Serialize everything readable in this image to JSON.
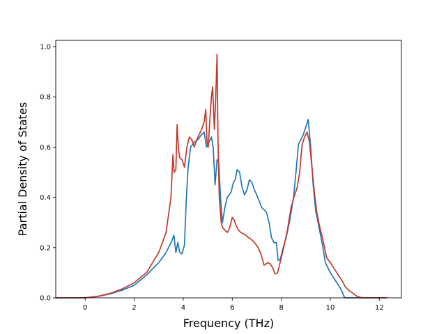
{
  "chart_data": {
    "type": "line",
    "title": "",
    "xlabel": "Frequency (THz)",
    "ylabel": "Partial Density of States",
    "xlim": [
      -1.2,
      12.9
    ],
    "ylim": [
      0.0,
      1.025
    ],
    "xticks": [
      0,
      2,
      4,
      6,
      8,
      10,
      12
    ],
    "yticks": [
      0.0,
      0.2,
      0.4,
      0.6,
      0.8,
      1.0
    ],
    "xtick_labels": [
      "0",
      "2",
      "4",
      "6",
      "8",
      "10",
      "12"
    ],
    "ytick_labels": [
      "0.0",
      "0.2",
      "0.4",
      "0.6",
      "0.8",
      "1.0"
    ],
    "grid": false,
    "legend": "none",
    "series": [
      {
        "color": "#1f77b4",
        "x": [
          -1.2,
          -0.5,
          0.0,
          0.5,
          1.0,
          1.5,
          2.0,
          2.5,
          3.0,
          3.3,
          3.55,
          3.62,
          3.7,
          3.78,
          3.86,
          3.95,
          4.05,
          4.12,
          4.2,
          4.3,
          4.45,
          4.6,
          4.75,
          4.85,
          4.95,
          5.05,
          5.15,
          5.22,
          5.3,
          5.38,
          5.45,
          5.52,
          5.6,
          5.7,
          5.8,
          5.95,
          6.05,
          6.12,
          6.2,
          6.3,
          6.4,
          6.5,
          6.6,
          6.7,
          6.8,
          6.9,
          7.0,
          7.2,
          7.4,
          7.5,
          7.6,
          7.7,
          7.8,
          7.87,
          7.95,
          8.05,
          8.2,
          8.35,
          8.5,
          8.6,
          8.7,
          8.8,
          8.9,
          9.0,
          9.1,
          9.2,
          9.3,
          9.4,
          9.5,
          9.6,
          9.7,
          9.8,
          9.9,
          10.0,
          10.2,
          10.4,
          10.5,
          10.56,
          10.6,
          12.3
        ],
        "y": [
          0.0,
          0.0,
          0.0,
          0.005,
          0.015,
          0.03,
          0.05,
          0.09,
          0.14,
          0.18,
          0.23,
          0.25,
          0.18,
          0.22,
          0.18,
          0.175,
          0.21,
          0.38,
          0.52,
          0.6,
          0.62,
          0.63,
          0.65,
          0.66,
          0.6,
          0.62,
          0.64,
          0.6,
          0.45,
          0.55,
          0.54,
          0.4,
          0.3,
          0.36,
          0.4,
          0.42,
          0.46,
          0.47,
          0.51,
          0.5,
          0.44,
          0.41,
          0.43,
          0.47,
          0.46,
          0.43,
          0.41,
          0.36,
          0.34,
          0.3,
          0.24,
          0.22,
          0.22,
          0.15,
          0.15,
          0.19,
          0.24,
          0.31,
          0.4,
          0.5,
          0.61,
          0.63,
          0.65,
          0.68,
          0.71,
          0.6,
          0.45,
          0.35,
          0.3,
          0.25,
          0.2,
          0.14,
          0.12,
          0.1,
          0.07,
          0.04,
          0.02,
          0.005,
          0.0,
          0.0
        ]
      },
      {
        "color": "#c0392b",
        "x": [
          -1.2,
          -0.5,
          0.0,
          0.5,
          1.0,
          1.5,
          2.0,
          2.5,
          3.0,
          3.3,
          3.5,
          3.58,
          3.63,
          3.7,
          3.75,
          3.8,
          3.85,
          3.95,
          4.05,
          4.15,
          4.25,
          4.35,
          4.45,
          4.55,
          4.65,
          4.75,
          4.85,
          4.92,
          4.97,
          5.02,
          5.08,
          5.15,
          5.2,
          5.27,
          5.32,
          5.38,
          5.42,
          5.47,
          5.55,
          5.6,
          5.7,
          5.8,
          5.9,
          6.0,
          6.08,
          6.15,
          6.25,
          6.35,
          6.45,
          6.55,
          6.65,
          6.75,
          6.85,
          6.95,
          7.05,
          7.15,
          7.3,
          7.45,
          7.55,
          7.65,
          7.75,
          7.85,
          7.95,
          8.1,
          8.25,
          8.4,
          8.55,
          8.65,
          8.75,
          8.85,
          8.95,
          9.05,
          9.15,
          9.25,
          9.35,
          9.45,
          9.55,
          9.7,
          9.85,
          10.0,
          10.2,
          10.4,
          10.5,
          10.6,
          10.75,
          10.9,
          11.1,
          11.3,
          12.3
        ],
        "y": [
          0.0,
          0.0,
          0.0,
          0.006,
          0.017,
          0.035,
          0.06,
          0.1,
          0.18,
          0.26,
          0.4,
          0.57,
          0.5,
          0.51,
          0.69,
          0.6,
          0.56,
          0.55,
          0.52,
          0.6,
          0.64,
          0.63,
          0.6,
          0.63,
          0.65,
          0.67,
          0.7,
          0.75,
          0.62,
          0.6,
          0.7,
          0.8,
          0.84,
          0.67,
          0.78,
          0.97,
          0.62,
          0.4,
          0.3,
          0.28,
          0.27,
          0.26,
          0.28,
          0.32,
          0.31,
          0.29,
          0.27,
          0.26,
          0.255,
          0.25,
          0.24,
          0.235,
          0.225,
          0.215,
          0.2,
          0.18,
          0.13,
          0.14,
          0.135,
          0.12,
          0.095,
          0.1,
          0.14,
          0.2,
          0.27,
          0.36,
          0.41,
          0.44,
          0.5,
          0.61,
          0.64,
          0.66,
          0.62,
          0.52,
          0.42,
          0.34,
          0.29,
          0.23,
          0.16,
          0.14,
          0.11,
          0.08,
          0.065,
          0.045,
          0.03,
          0.02,
          0.005,
          0.0,
          0.0
        ]
      }
    ]
  }
}
